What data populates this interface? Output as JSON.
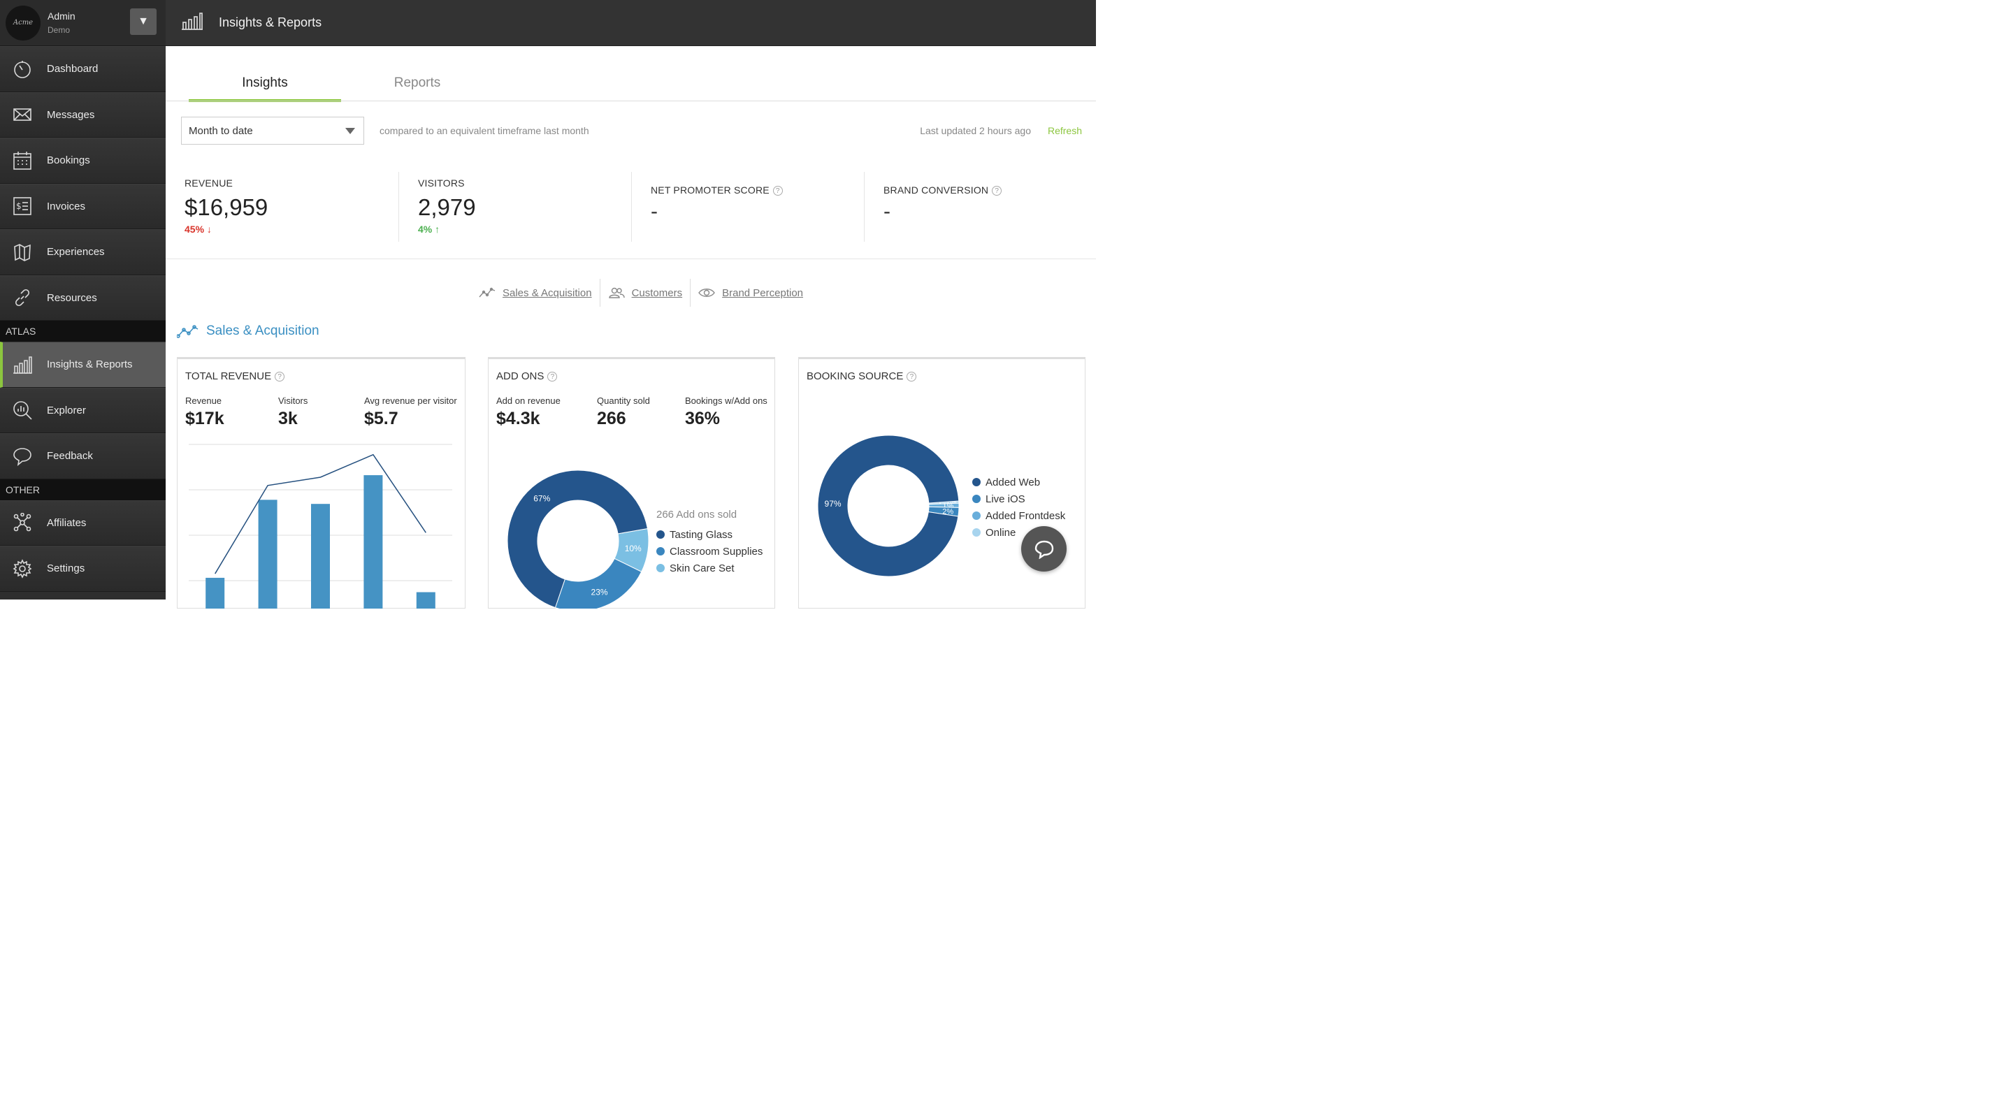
{
  "account": {
    "logo_text": "Acme",
    "name": "Admin",
    "subtitle": "Demo"
  },
  "sidebar": {
    "items": [
      {
        "label": "Dashboard",
        "icon": "dashboard-icon"
      },
      {
        "label": "Messages",
        "icon": "envelope-icon"
      },
      {
        "label": "Bookings",
        "icon": "calendar-icon"
      },
      {
        "label": "Invoices",
        "icon": "invoice-icon"
      },
      {
        "label": "Experiences",
        "icon": "map-icon"
      },
      {
        "label": "Resources",
        "icon": "link-icon"
      }
    ],
    "section_atlas": "ATLAS",
    "atlas_items": [
      {
        "label": "Insights & Reports",
        "icon": "bar-chart-icon",
        "active": true
      },
      {
        "label": "Explorer",
        "icon": "magnify-chart-icon"
      },
      {
        "label": "Feedback",
        "icon": "speech-bubble-icon"
      }
    ],
    "section_other": "OTHER",
    "other_items": [
      {
        "label": "Affiliates",
        "icon": "network-icon"
      },
      {
        "label": "Settings",
        "icon": "gear-icon"
      }
    ]
  },
  "header": {
    "title": "Insights & Reports"
  },
  "tabs": [
    {
      "label": "Insights",
      "active": true
    },
    {
      "label": "Reports",
      "active": false
    }
  ],
  "filter": {
    "selected": "Month to date",
    "compare_text": "compared to an equivalent timeframe last month",
    "updated_text": "Last updated 2 hours ago",
    "refresh_label": "Refresh"
  },
  "kpis": {
    "revenue": {
      "label": "REVENUE",
      "value": "$16,959",
      "delta": "45%",
      "direction": "down"
    },
    "visitors": {
      "label": "VISITORS",
      "value": "2,979",
      "delta": "4%",
      "direction": "up"
    },
    "nps": {
      "label": "NET PROMOTER SCORE",
      "value": "-"
    },
    "brand_conversion": {
      "label": "BRAND CONVERSION",
      "value": "-"
    }
  },
  "subnav": [
    "Sales & Acquisition",
    "Customers",
    "Brand Perception"
  ],
  "section_title": "Sales & Acquisition",
  "cards": {
    "total_revenue": {
      "title": "TOTAL REVENUE",
      "metrics": [
        {
          "label": "Revenue",
          "value": "$17k"
        },
        {
          "label": "Visitors",
          "value": "3k"
        },
        {
          "label": "Avg revenue per visitor",
          "value": "$5.7"
        }
      ]
    },
    "add_ons": {
      "title": "ADD ONS",
      "metrics": [
        {
          "label": "Add on revenue",
          "value": "$4.3k"
        },
        {
          "label": "Quantity sold",
          "value": "266"
        },
        {
          "label": "Bookings w/Add ons",
          "value": "36%"
        }
      ],
      "legend_head": "266 Add ons sold",
      "legend": [
        {
          "label": "Tasting Glass",
          "color": "#24558c"
        },
        {
          "label": "Classroom Supplies",
          "color": "#3a86bf"
        },
        {
          "label": "Skin Care Set",
          "color": "#7bbfe3"
        }
      ]
    },
    "booking_source": {
      "title": "BOOKING SOURCE",
      "legend": [
        {
          "label": "Added Web",
          "color": "#24558c"
        },
        {
          "label": "Live iOS",
          "color": "#3a86bf"
        },
        {
          "label": "Added Frontdesk",
          "color": "#69aedb"
        },
        {
          "label": "Online",
          "color": "#a8d4ee"
        }
      ]
    }
  },
  "chart_data": [
    {
      "type": "bar",
      "chart": "total_revenue",
      "series": [
        {
          "kind": "bar",
          "values": [
            15,
            53,
            51,
            65,
            8
          ]
        },
        {
          "kind": "line",
          "values": [
            17,
            60,
            64,
            75,
            37
          ]
        }
      ]
    },
    {
      "type": "pie",
      "chart": "add_ons",
      "slices": [
        {
          "label": "Tasting Glass",
          "value": 67,
          "text": "67%",
          "color": "#24558c"
        },
        {
          "label": "Classroom Supplies",
          "value": 23,
          "text": "23%",
          "color": "#3a86bf"
        },
        {
          "label": "Skin Care Set",
          "value": 10,
          "text": "10%",
          "color": "#7bbfe3"
        }
      ]
    },
    {
      "type": "pie",
      "chart": "booking_source",
      "slices": [
        {
          "label": "Added Web",
          "value": 97,
          "text": "97%",
          "color": "#24558c"
        },
        {
          "label": "Live iOS",
          "value": 2,
          "text": "2%",
          "color": "#3a86bf"
        },
        {
          "label": "Added Frontdesk",
          "value": 1,
          "text": "1%",
          "color": "#69aedb"
        },
        {
          "label": "Online",
          "value": 0.5,
          "text": "< 1%",
          "color": "#a8d4ee"
        }
      ]
    }
  ]
}
